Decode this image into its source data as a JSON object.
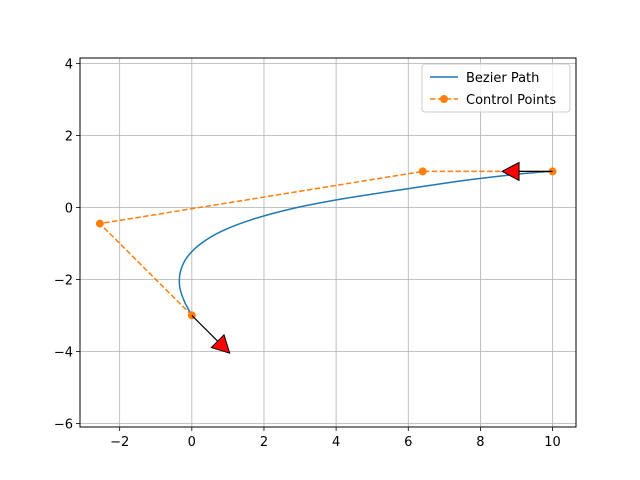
{
  "chart_data": {
    "type": "line",
    "title": "",
    "xlabel": "",
    "ylabel": "",
    "xlim": [
      -3.1,
      10.65
    ],
    "ylim": [
      -6.1,
      4.15
    ],
    "xticks": [
      -2,
      0,
      2,
      4,
      6,
      8,
      10
    ],
    "yticks": [
      -6,
      -4,
      -2,
      0,
      2,
      4
    ],
    "xtick_labels": [
      "−2",
      "0",
      "2",
      "4",
      "6",
      "8",
      "10"
    ],
    "ytick_labels": [
      "−6",
      "−4",
      "−2",
      "0",
      "2",
      "4"
    ],
    "grid": true,
    "legend_position": "top-right",
    "series": [
      {
        "name": "Bezier Path",
        "style": "solid",
        "color": "#1f77b4",
        "x": [
          0.0,
          -0.22,
          -0.34,
          -0.31,
          -0.12,
          0.26,
          0.85,
          1.69,
          2.8,
          4.19,
          5.87,
          7.72,
          9.1,
          10.0
        ],
        "y": [
          -3.0,
          -2.58,
          -2.17,
          -1.76,
          -1.37,
          -1.0,
          -0.65,
          -0.33,
          -0.03,
          0.24,
          0.5,
          0.77,
          0.93,
          1.0
        ]
      },
      {
        "name": "Control Points",
        "style": "dashed",
        "marker": "circle",
        "color": "#ff7f0e",
        "x": [
          0.0,
          -2.55,
          6.4,
          8.0,
          10.0
        ],
        "y": [
          -3.0,
          -0.45,
          1.0,
          1.0,
          1.0
        ],
        "marker_x": [
          0.0,
          -2.55,
          6.4,
          10.0
        ],
        "marker_y": [
          -3.0,
          -0.45,
          1.0,
          1.0
        ]
      }
    ],
    "arrows": [
      {
        "x0": 0.0,
        "y0": -3.0,
        "x1": 1.05,
        "y1": -4.05,
        "color": "#ff0000"
      },
      {
        "x0": 10.0,
        "y0": 1.0,
        "x1": 8.6,
        "y1": 1.0,
        "color": "#ff0000"
      }
    ]
  }
}
